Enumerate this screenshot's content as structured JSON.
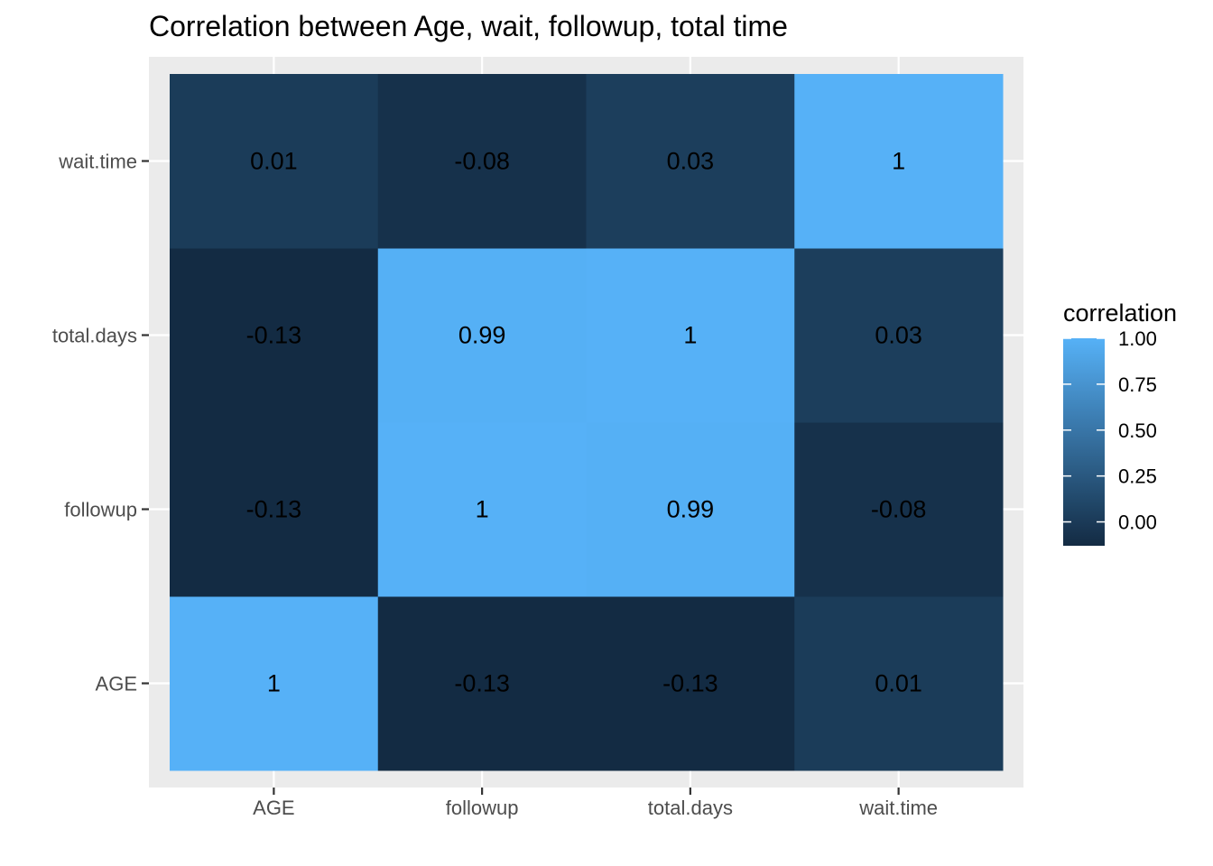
{
  "chart_data": {
    "type": "heatmap",
    "title": "Correlation between Age, wait, followup, total time",
    "xlabel": "",
    "ylabel": "",
    "x_categories": [
      "AGE",
      "followup",
      "total.days",
      "wait.time"
    ],
    "y_categories": [
      "AGE",
      "followup",
      "total.days",
      "wait.time"
    ],
    "values": [
      [
        1,
        -0.13,
        -0.13,
        0.01
      ],
      [
        -0.13,
        1,
        0.99,
        -0.08
      ],
      [
        -0.13,
        0.99,
        1,
        0.03
      ],
      [
        0.01,
        -0.08,
        0.03,
        1
      ]
    ],
    "labels": [
      [
        "1",
        "-0.13",
        "-0.13",
        "0.01"
      ],
      [
        "-0.13",
        "1",
        "0.99",
        "-0.08"
      ],
      [
        "-0.13",
        "0.99",
        "1",
        "0.03"
      ],
      [
        "0.01",
        "-0.08",
        "0.03",
        "1"
      ]
    ],
    "legend": {
      "title": "correlation",
      "ticks": [
        1.0,
        0.75,
        0.5,
        0.25,
        0.0
      ],
      "tick_labels": [
        "1.00",
        "0.75",
        "0.50",
        "0.25",
        "0.00"
      ],
      "range": [
        -0.13,
        1
      ],
      "placement": "right"
    },
    "color_low": "#132B43",
    "color_high": "#56B1F7",
    "panel_background": "#EBEBEB",
    "grid_color": "#FFFFFF",
    "grid": true
  }
}
